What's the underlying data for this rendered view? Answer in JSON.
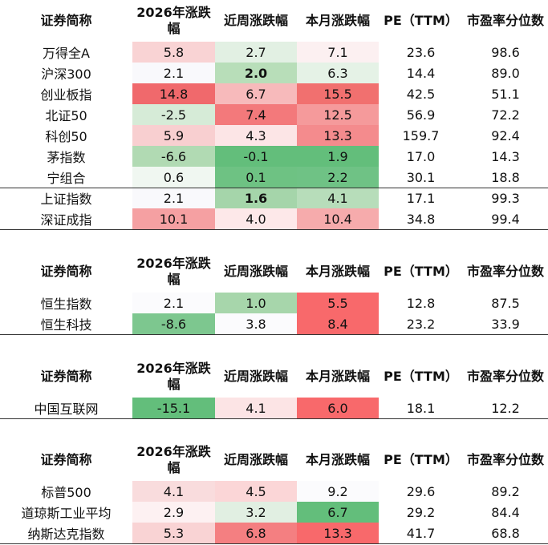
{
  "tables": [
    {
      "header": [
        "证券简称",
        "2026年涨跌幅",
        "近周涨跌幅",
        "本月涨跌幅",
        "PE（TTM）",
        "市盈率分位数"
      ],
      "rows": [
        [
          "万得全A",
          "5.8",
          "2.7",
          "7.1",
          "23.6",
          "98.6"
        ],
        [
          "沪深300",
          "2.1",
          "2.0",
          "6.3",
          "14.4",
          "89.0"
        ],
        [
          "创业板指",
          "14.8",
          "6.7",
          "15.5",
          "42.5",
          "51.1"
        ],
        [
          "北证50",
          "-2.5",
          "7.4",
          "12.5",
          "56.9",
          "72.2"
        ],
        [
          "科创50",
          "5.9",
          "4.3",
          "13.3",
          "159.7",
          "92.4"
        ],
        [
          "茅指数",
          "-6.6",
          "-0.1",
          "1.9",
          "17.0",
          "14.3"
        ],
        [
          "宁组合",
          "0.6",
          "0.1",
          "2.2",
          "30.1",
          "18.8"
        ],
        [
          "上证指数",
          "2.1",
          "1.6",
          "4.1",
          "17.1",
          "99.3"
        ],
        [
          "深证成指",
          "10.1",
          "4.0",
          "10.4",
          "34.8",
          "99.4"
        ]
      ],
      "cell_colors": [
        [
          "#f9d3d4",
          "#e2f0e3",
          "#fcf0f1"
        ],
        [
          "#f9f9fc",
          "#b8deb9",
          "#e5f2e6"
        ],
        [
          "#f0696c",
          "#f7babb",
          "#f1706f"
        ],
        [
          "#d6ebd7",
          "#f3797b",
          "#f59a9b"
        ],
        [
          "#f8cfd0",
          "#fce5e6",
          "#f48b8d"
        ],
        [
          "#b1dab3",
          "#63be7b",
          "#63be7b"
        ],
        [
          "#f0f7f1",
          "#6ec283",
          "#6fc285"
        ],
        [
          "#f9f9fc",
          "#a5d5aa",
          "#b7ddba"
        ],
        [
          "#f5a0a2",
          "#fde8e9",
          "#f6abac"
        ]
      ],
      "bold_cells": [
        [
          1,
          2
        ],
        [
          7,
          2
        ]
      ]
    },
    {
      "header": [
        "证券简称",
        "2026年涨跌幅",
        "近周涨跌幅",
        "本月涨跌幅",
        "PE（TTM）",
        "市盈率分位数"
      ],
      "rows": [
        [
          "恒生指数",
          "2.1",
          "1.0",
          "5.5",
          "12.8",
          "87.5"
        ],
        [
          "恒生科技",
          "-8.6",
          "3.8",
          "8.4",
          "23.2",
          "33.9"
        ]
      ],
      "cell_colors": [
        [
          "#fbfbfd",
          "#a7d6ab",
          "#f8696b"
        ],
        [
          "#7dc78f",
          "#fbfbfd",
          "#f8696b"
        ]
      ],
      "bold_cells": []
    },
    {
      "header": [
        "证券简称",
        "2026年涨跌幅",
        "近周涨跌幅",
        "本月涨跌幅",
        "PE（TTM）",
        "市盈率分位数"
      ],
      "rows": [
        [
          "中国互联网",
          "-15.1",
          "4.1",
          "6.0",
          "18.1",
          "12.2"
        ]
      ],
      "cell_colors": [
        [
          "#63be7b",
          "#fce4e5",
          "#f8696b"
        ]
      ],
      "bold_cells": []
    },
    {
      "header": [
        "证券简称",
        "2026年涨跌幅",
        "近周涨跌幅",
        "本月涨跌幅",
        "PE（TTM）",
        "市盈率分位数"
      ],
      "rows": [
        [
          "标普500",
          "4.1",
          "4.5",
          "9.2",
          "29.6",
          "89.2"
        ],
        [
          "道琼斯工业平均",
          "2.9",
          "3.2",
          "6.7",
          "29.2",
          "84.4"
        ],
        [
          "纳斯达克指数",
          "5.3",
          "6.8",
          "13.3",
          "41.7",
          "68.8"
        ]
      ],
      "cell_colors": [
        [
          "#f9dcdd",
          "#fbd6d7",
          "#fbfbfd"
        ],
        [
          "#fdf1f2",
          "#e1efe2",
          "#63be7b"
        ],
        [
          "#f9d3d4",
          "#f47f81",
          "#f8696b"
        ]
      ],
      "bold_cells": []
    }
  ]
}
